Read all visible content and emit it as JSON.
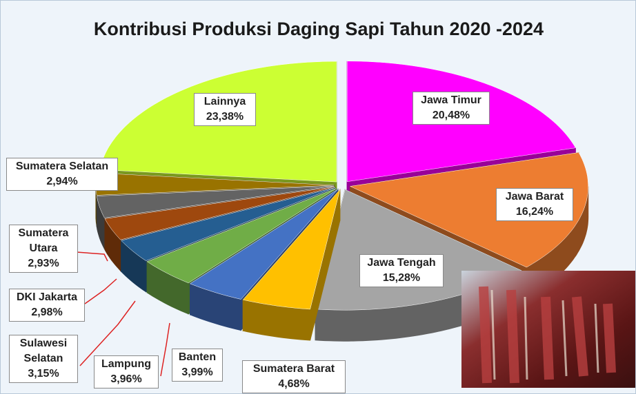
{
  "chart_data": {
    "type": "pie",
    "title": "Kontribusi Produksi Daging Sapi Tahun 2020 -2024",
    "categories": [
      "Jawa Timur",
      "Jawa Barat",
      "Jawa Tengah",
      "Sumatera Barat",
      "Banten",
      "Lampung",
      "Sulawesi Selatan",
      "DKI Jakarta",
      "Sumatera Utara",
      "Sumatera Selatan",
      "Lainnya"
    ],
    "values": [
      20.48,
      16.24,
      15.28,
      4.68,
      3.99,
      3.96,
      3.15,
      2.98,
      2.93,
      2.94,
      23.38
    ],
    "value_labels": [
      "20,48%",
      "16,24%",
      "15,28%",
      "4,68%",
      "3,99%",
      "3,96%",
      "3,15%",
      "2,98%",
      "2,93%",
      "2,94%",
      "23,38%"
    ],
    "colors": [
      "#ff00ff",
      "#ed7d31",
      "#a5a5a5",
      "#ffc000",
      "#4472c4",
      "#70ad47",
      "#255e91",
      "#9e480e",
      "#636363",
      "#997300",
      "#ccff33"
    ]
  }
}
